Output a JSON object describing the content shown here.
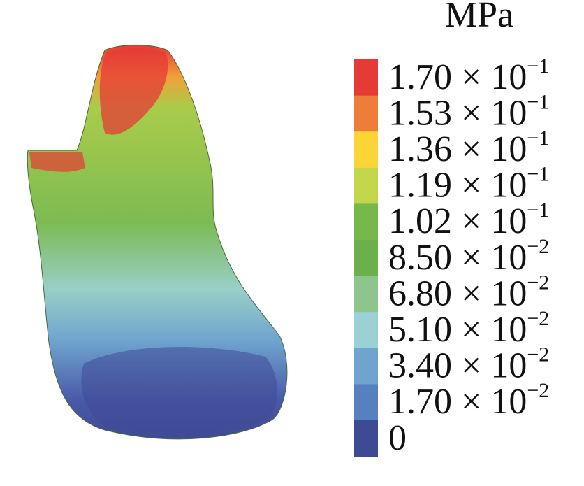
{
  "legend": {
    "title": "MPa",
    "entries": [
      {
        "text": "1.70 × 10",
        "sup": "−1",
        "color": "#e53a35"
      },
      {
        "text": "1.53 × 10",
        "sup": "−1",
        "color": "#ee7d3a"
      },
      {
        "text": "1.36 × 10",
        "sup": "−1",
        "color": "#fbd535"
      },
      {
        "text": "1.19 × 10",
        "sup": "−1",
        "color": "#c4d64b"
      },
      {
        "text": "1.02 × 10",
        "sup": "−1",
        "color": "#76b84a"
      },
      {
        "text": "8.50 × 10",
        "sup": "−2",
        "color": "#6cb04c"
      },
      {
        "text": "6.80 × 10",
        "sup": "−2",
        "color": "#8dc58d"
      },
      {
        "text": "5.10 × 10",
        "sup": "−2",
        "color": "#9bd1d5"
      },
      {
        "text": "3.40 × 10",
        "sup": "−2",
        "color": "#6fa4cf"
      },
      {
        "text": "1.70 × 10",
        "sup": "−2",
        "color": "#5780c0"
      },
      {
        "text": "0",
        "sup": null,
        "color": "#3f4a95"
      }
    ]
  }
}
